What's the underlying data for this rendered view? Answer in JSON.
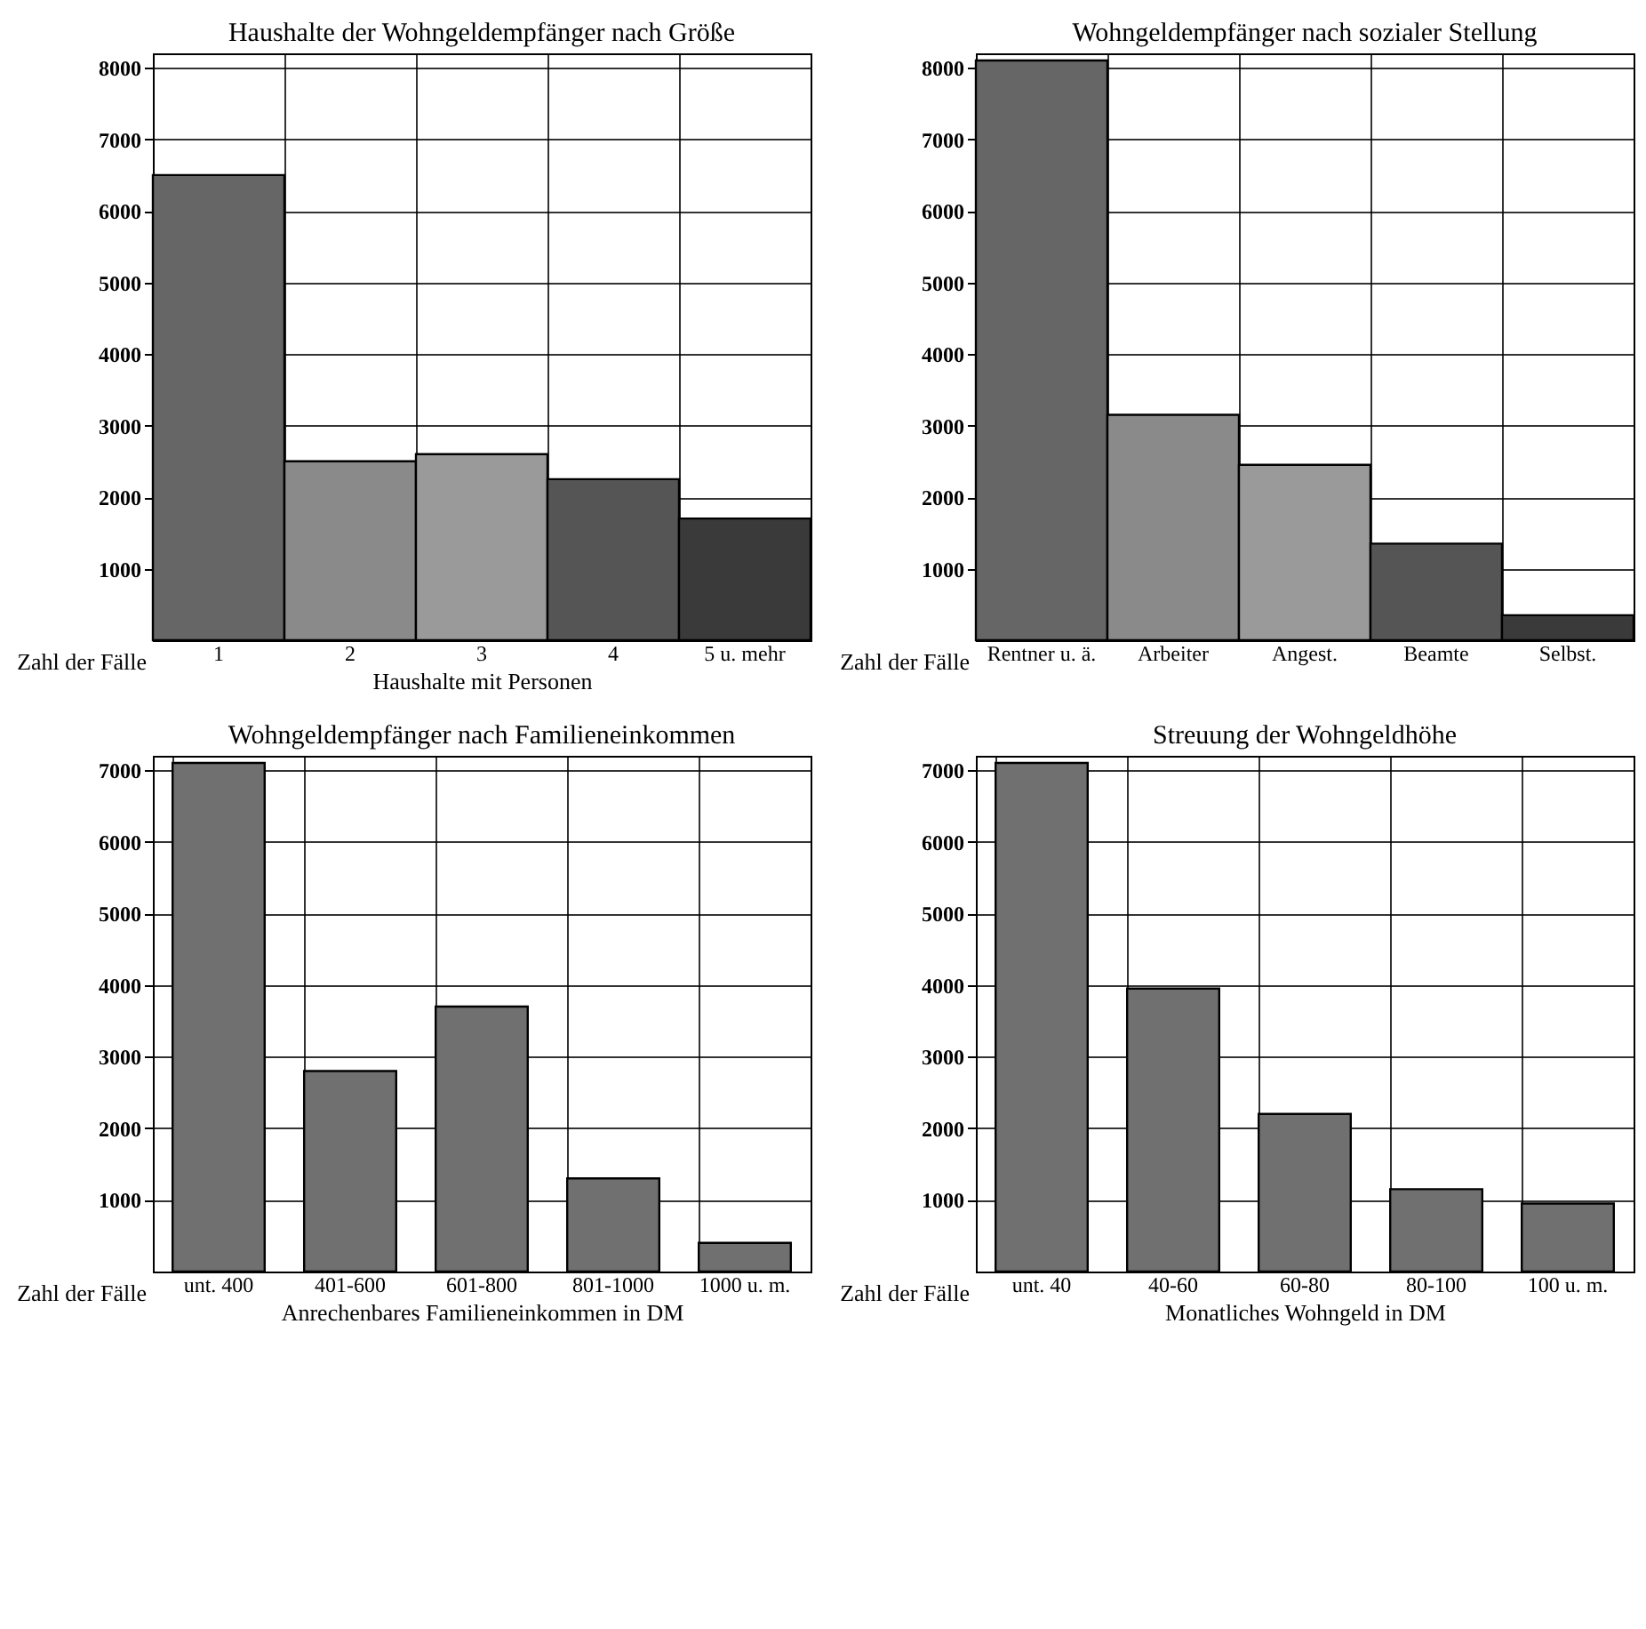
{
  "chart_data": [
    {
      "type": "bar",
      "title": "Haushalte der Wohngeldempfänger nach Größe",
      "xlabel": "Haushalte mit  Personen",
      "ylabel": "Zahl der Fälle",
      "categories": [
        "1",
        "2",
        "3",
        "4",
        "5 u. mehr"
      ],
      "values": [
        6500,
        2500,
        2600,
        2250,
        1700
      ],
      "colors": [
        "#666666",
        "#8a8a8a",
        "#9a9a9a",
        "#555555",
        "#3a3a3a"
      ],
      "ylim": [
        0,
        8200
      ],
      "yticks": [
        1000,
        2000,
        3000,
        4000,
        5000,
        6000,
        7000,
        8000
      ],
      "grid": true
    },
    {
      "type": "bar",
      "title": "Wohngeldempfänger nach sozialer Stellung",
      "ylabel": "Zahl der Fälle",
      "categories": [
        "Rentner u. ä.",
        "Arbeiter",
        "Angest.",
        "Beamte",
        "Selbst."
      ],
      "values": [
        8100,
        3150,
        2450,
        1350,
        350
      ],
      "colors": [
        "#666666",
        "#8a8a8a",
        "#9a9a9a",
        "#555555",
        "#3a3a3a"
      ],
      "ylim": [
        0,
        8200
      ],
      "yticks": [
        1000,
        2000,
        3000,
        4000,
        5000,
        6000,
        7000,
        8000
      ],
      "grid": true
    },
    {
      "type": "bar",
      "title": "Wohngeldempfänger nach Familieneinkommen",
      "xlabel": "Anrechenbares Familieneinkommen in DM",
      "ylabel": "Zahl der Fälle",
      "categories": [
        "unt. 400",
        "401-600",
        "601-800",
        "801-1000",
        "1000 u. m."
      ],
      "values": [
        7100,
        2800,
        3700,
        1300,
        400
      ],
      "color": "#707070",
      "ylim": [
        0,
        7200
      ],
      "yticks": [
        1000,
        2000,
        3000,
        4000,
        5000,
        6000,
        7000
      ],
      "grid": true
    },
    {
      "type": "bar",
      "title": "Streuung der Wohngeldhöhe",
      "xlabel": "Monatliches Wohngeld in DM",
      "ylabel": "Zahl der Fälle",
      "categories": [
        "unt. 40",
        "40-60",
        "60-80",
        "80-100",
        "100 u. m."
      ],
      "values": [
        7100,
        3950,
        2200,
        1150,
        950
      ],
      "color": "#707070",
      "ylim": [
        0,
        7200
      ],
      "yticks": [
        1000,
        2000,
        3000,
        4000,
        5000,
        6000,
        7000
      ],
      "grid": true
    }
  ]
}
